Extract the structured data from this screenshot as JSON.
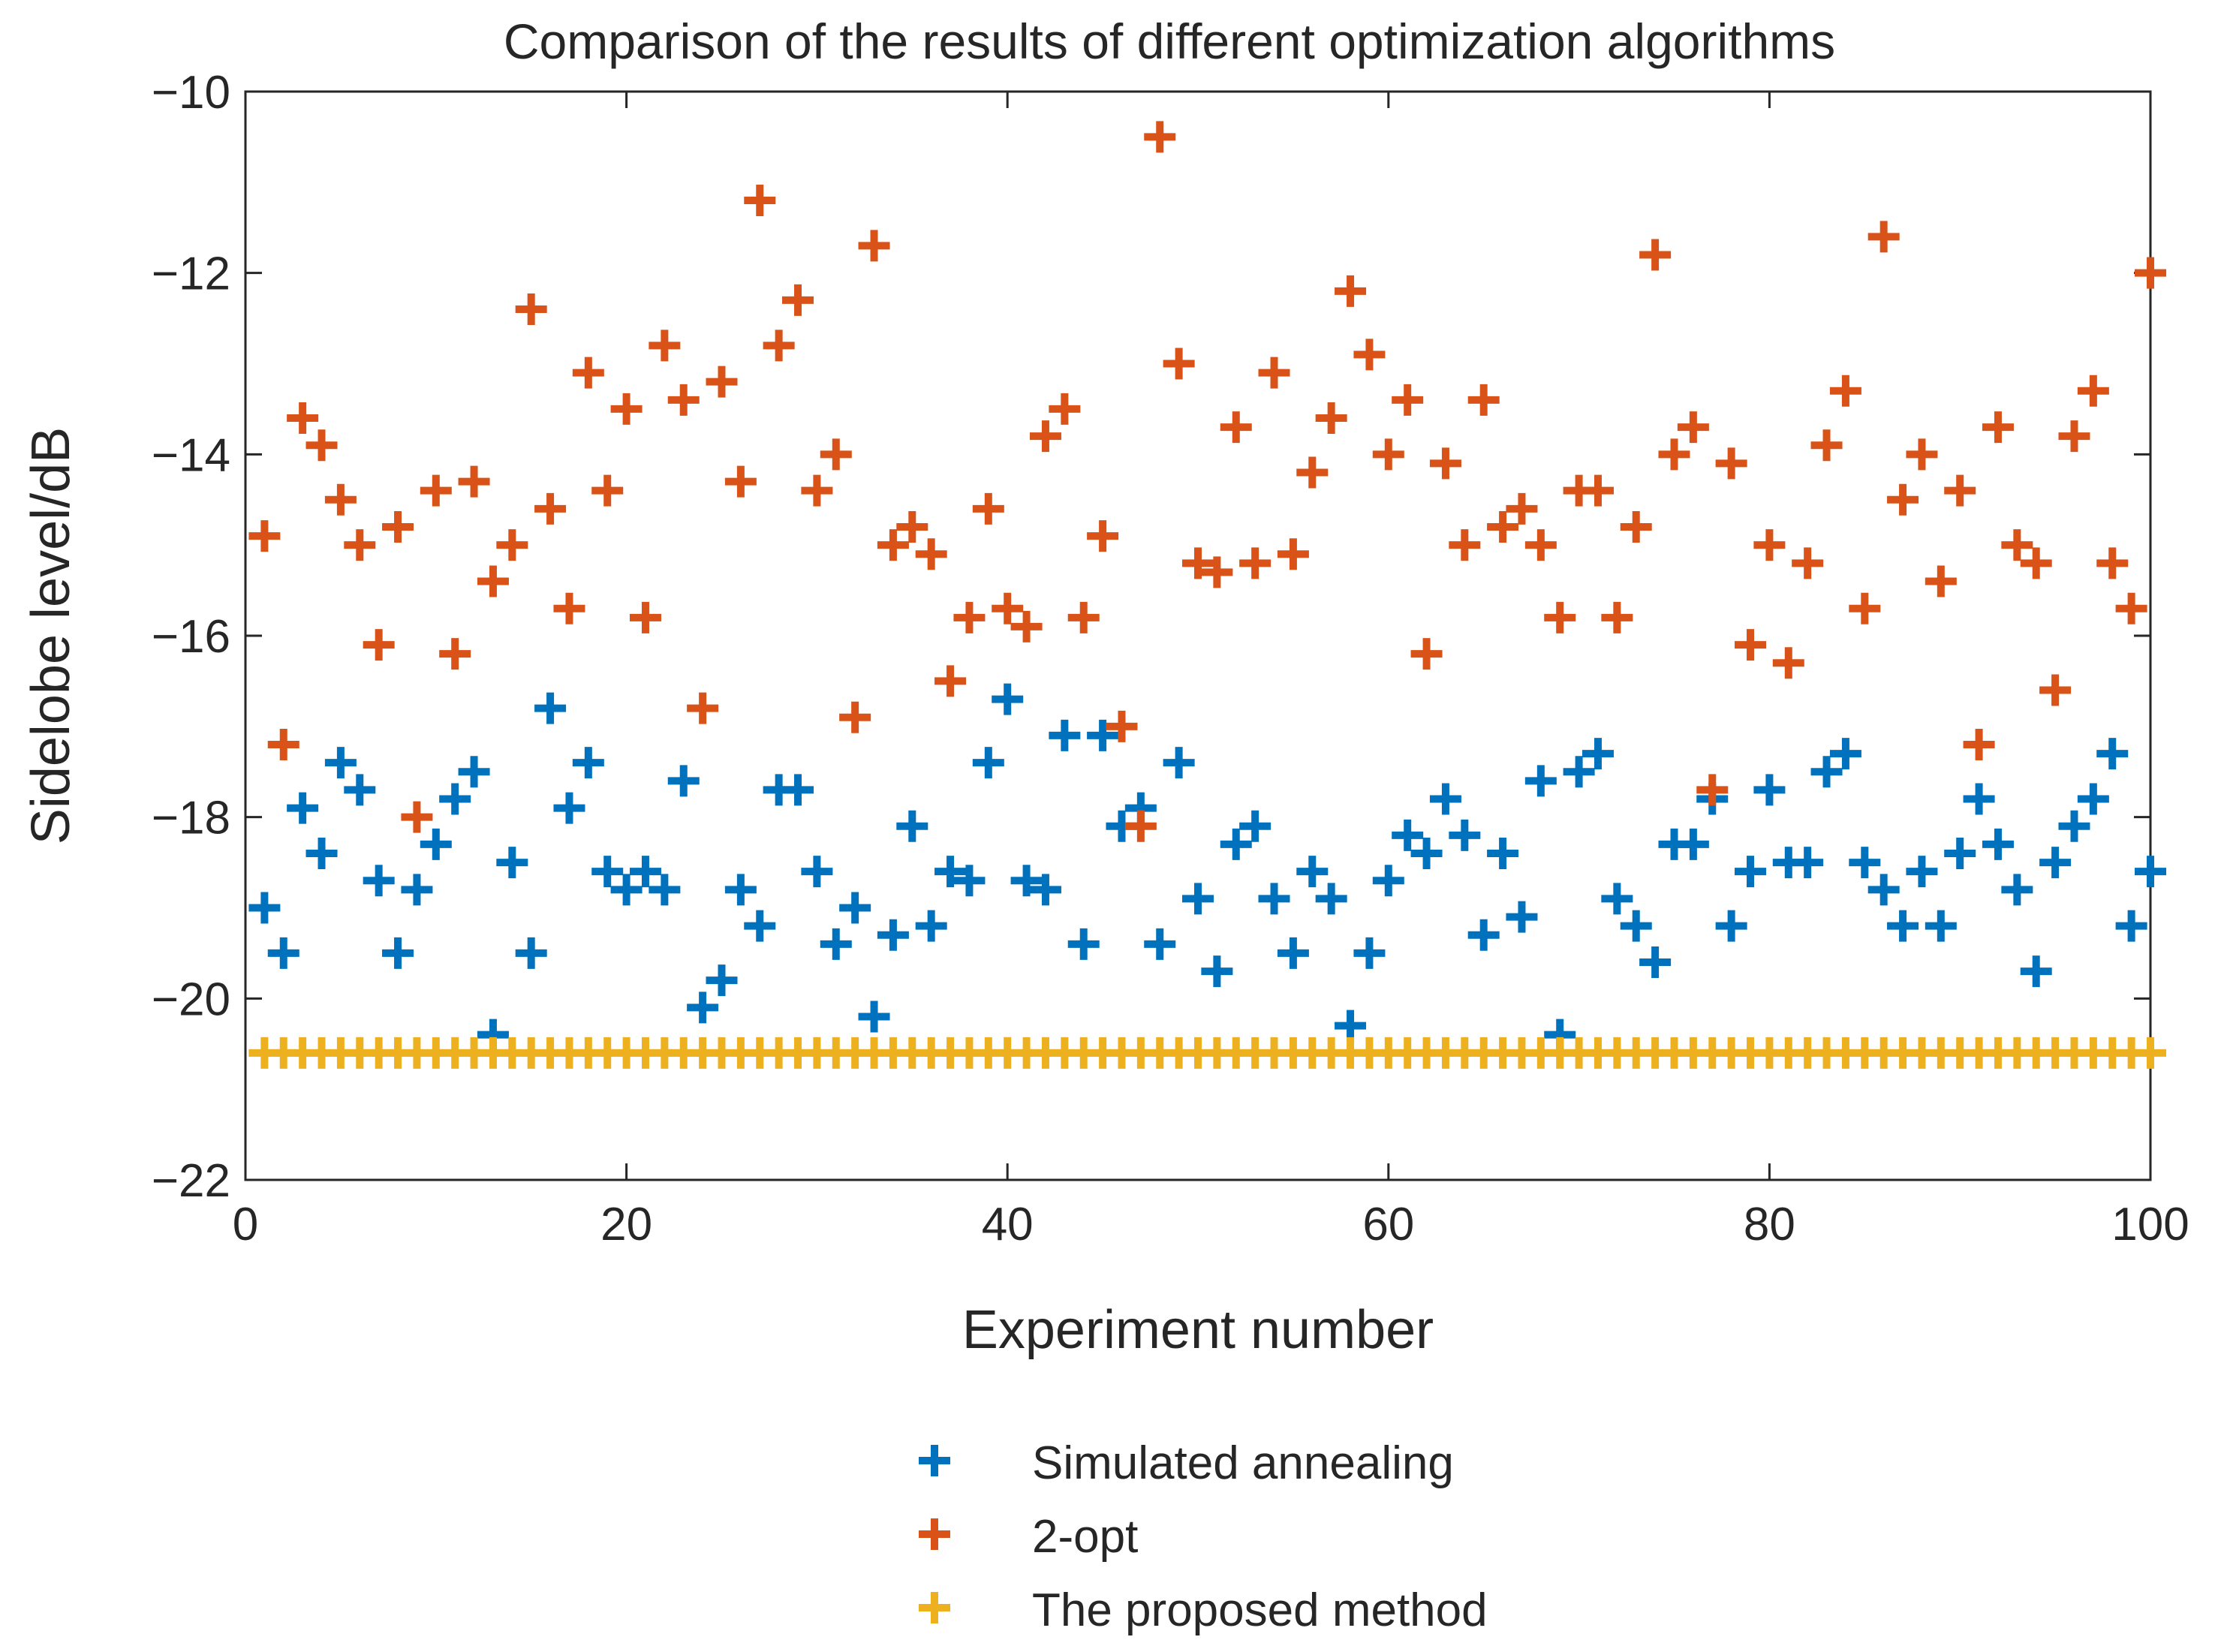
{
  "chart_data": {
    "type": "scatter",
    "title": "Comparison of the results of different optimization algorithms",
    "xlabel": "Experiment number",
    "ylabel": "Sidelobe level/dB",
    "xlim": [
      0,
      100
    ],
    "ylim": [
      -22,
      -10
    ],
    "xticks": [
      0,
      20,
      40,
      60,
      80,
      100
    ],
    "yticks": [
      -22,
      -20,
      -18,
      -16,
      -14,
      -12,
      -10
    ],
    "xtick_labels": [
      "0",
      "20",
      "40",
      "60",
      "80",
      "100"
    ],
    "ytick_labels": [
      "−22",
      "−20",
      "−18",
      "−16",
      "−14",
      "−12",
      "−10"
    ],
    "marker": "+",
    "grid": false,
    "legend_position": "bottom-center",
    "x": [
      1,
      2,
      3,
      4,
      5,
      6,
      7,
      8,
      9,
      10,
      11,
      12,
      13,
      14,
      15,
      16,
      17,
      18,
      19,
      20,
      21,
      22,
      23,
      24,
      25,
      26,
      27,
      28,
      29,
      30,
      31,
      32,
      33,
      34,
      35,
      36,
      37,
      38,
      39,
      40,
      41,
      42,
      43,
      44,
      45,
      46,
      47,
      48,
      49,
      50,
      51,
      52,
      53,
      54,
      55,
      56,
      57,
      58,
      59,
      60,
      61,
      62,
      63,
      64,
      65,
      66,
      67,
      68,
      69,
      70,
      71,
      72,
      73,
      74,
      75,
      76,
      77,
      78,
      79,
      80,
      81,
      82,
      83,
      84,
      85,
      86,
      87,
      88,
      89,
      90,
      91,
      92,
      93,
      94,
      95,
      96,
      97,
      98,
      99,
      100
    ],
    "series": [
      {
        "name": "Simulated annealing",
        "color": "#0072BD",
        "values": [
          -19.0,
          -19.5,
          -17.9,
          -18.4,
          -17.4,
          -17.7,
          -18.7,
          -19.5,
          -18.8,
          -18.3,
          -17.8,
          -17.5,
          -20.4,
          -18.5,
          -19.5,
          -16.8,
          -17.9,
          -17.4,
          -18.6,
          -18.8,
          -18.6,
          -18.8,
          -17.6,
          -20.1,
          -19.8,
          -18.8,
          -19.2,
          -17.7,
          -17.7,
          -18.6,
          -19.4,
          -19.0,
          -20.2,
          -19.3,
          -18.1,
          -19.2,
          -18.6,
          -18.7,
          -17.4,
          -16.7,
          -18.7,
          -18.8,
          -17.1,
          -19.4,
          -17.1,
          -18.1,
          -17.9,
          -19.4,
          -17.4,
          -18.9,
          -19.7,
          -18.3,
          -18.1,
          -18.9,
          -19.5,
          -18.6,
          -18.9,
          -20.3,
          -19.5,
          -18.7,
          -18.2,
          -18.4,
          -17.8,
          -18.2,
          -19.3,
          -18.4,
          -19.1,
          -17.6,
          -20.4,
          -17.5,
          -17.3,
          -18.9,
          -19.2,
          -19.6,
          -18.3,
          -18.3,
          -17.8,
          -19.2,
          -18.6,
          -17.7,
          -18.5,
          -18.5,
          -17.5,
          -17.3,
          -18.5,
          -18.8,
          -19.2,
          -18.6,
          -19.2,
          -18.4,
          -17.8,
          -18.3,
          -18.8,
          -19.7,
          -18.5,
          -18.1,
          -17.8,
          -17.3,
          -19.2,
          -18.6
        ]
      },
      {
        "name": "2-opt",
        "color": "#D95319",
        "values": [
          -14.9,
          -17.2,
          -13.6,
          -13.9,
          -14.5,
          -15.0,
          -16.1,
          -14.8,
          -18.0,
          -14.4,
          -16.2,
          -14.3,
          -15.4,
          -15.0,
          -12.4,
          -14.6,
          -15.7,
          -13.1,
          -14.4,
          -13.5,
          -15.8,
          -12.8,
          -13.4,
          -16.8,
          -13.2,
          -14.3,
          -11.2,
          -12.8,
          -12.3,
          -14.4,
          -14.0,
          -16.9,
          -11.7,
          -15.0,
          -14.8,
          -15.1,
          -16.5,
          -15.8,
          -14.6,
          -15.7,
          -15.9,
          -13.8,
          -13.5,
          -15.8,
          -14.9,
          -17.0,
          -18.1,
          -10.5,
          -13.0,
          -15.2,
          -15.3,
          -13.7,
          -15.2,
          -13.1,
          -15.1,
          -14.2,
          -13.6,
          -12.2,
          -12.9,
          -14.0,
          -13.4,
          -16.2,
          -14.1,
          -15.0,
          -13.4,
          -14.8,
          -14.6,
          -15.0,
          -15.8,
          -14.4,
          -14.4,
          -15.8,
          -14.8,
          -11.8,
          -14.0,
          -13.7,
          -17.7,
          -14.1,
          -16.1,
          -15.0,
          -16.3,
          -15.2,
          -13.9,
          -13.3,
          -15.7,
          -11.6,
          -14.5,
          -14.0,
          -15.4,
          -14.4,
          -17.2,
          -13.7,
          -15.0,
          -15.2,
          -16.6,
          -13.8,
          -13.3,
          -15.2,
          -15.7,
          -12.0
        ]
      },
      {
        "name": "The proposed method",
        "color": "#EDB120",
        "values": [
          -20.6,
          -20.6,
          -20.6,
          -20.6,
          -20.6,
          -20.6,
          -20.6,
          -20.6,
          -20.6,
          -20.6,
          -20.6,
          -20.6,
          -20.6,
          -20.6,
          -20.6,
          -20.6,
          -20.6,
          -20.6,
          -20.6,
          -20.6,
          -20.6,
          -20.6,
          -20.6,
          -20.6,
          -20.6,
          -20.6,
          -20.6,
          -20.6,
          -20.6,
          -20.6,
          -20.6,
          -20.6,
          -20.6,
          -20.6,
          -20.6,
          -20.6,
          -20.6,
          -20.6,
          -20.6,
          -20.6,
          -20.6,
          -20.6,
          -20.6,
          -20.6,
          -20.6,
          -20.6,
          -20.6,
          -20.6,
          -20.6,
          -20.6,
          -20.6,
          -20.6,
          -20.6,
          -20.6,
          -20.6,
          -20.6,
          -20.6,
          -20.6,
          -20.6,
          -20.6,
          -20.6,
          -20.6,
          -20.6,
          -20.6,
          -20.6,
          -20.6,
          -20.6,
          -20.6,
          -20.6,
          -20.6,
          -20.6,
          -20.6,
          -20.6,
          -20.6,
          -20.6,
          -20.6,
          -20.6,
          -20.6,
          -20.6,
          -20.6,
          -20.6,
          -20.6,
          -20.6,
          -20.6,
          -20.6,
          -20.6,
          -20.6,
          -20.6,
          -20.6,
          -20.6,
          -20.6,
          -20.6,
          -20.6,
          -20.6,
          -20.6,
          -20.6,
          -20.6,
          -20.6,
          -20.6,
          -20.6
        ]
      }
    ]
  }
}
